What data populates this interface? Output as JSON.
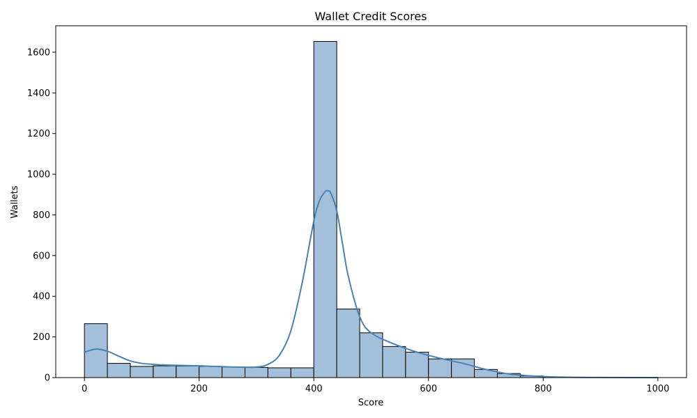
{
  "chart_data": {
    "type": "bar",
    "title": "Wallet Credit Scores",
    "xlabel": "Score",
    "ylabel": "Wallets",
    "xlim": [
      -50,
      1050
    ],
    "ylim": [
      0,
      1730
    ],
    "xticks": [
      0,
      200,
      400,
      600,
      800,
      1000
    ],
    "yticks": [
      0,
      200,
      400,
      600,
      800,
      1000,
      1200,
      1400,
      1600
    ],
    "bin_width": 40,
    "bins": [
      {
        "start": 0,
        "value": 265
      },
      {
        "start": 40,
        "value": 70
      },
      {
        "start": 80,
        "value": 55
      },
      {
        "start": 120,
        "value": 58
      },
      {
        "start": 160,
        "value": 57
      },
      {
        "start": 200,
        "value": 55
      },
      {
        "start": 240,
        "value": 52
      },
      {
        "start": 280,
        "value": 50
      },
      {
        "start": 320,
        "value": 48
      },
      {
        "start": 360,
        "value": 48
      },
      {
        "start": 400,
        "value": 1653
      },
      {
        "start": 440,
        "value": 337
      },
      {
        "start": 480,
        "value": 220
      },
      {
        "start": 520,
        "value": 153
      },
      {
        "start": 560,
        "value": 125
      },
      {
        "start": 600,
        "value": 92
      },
      {
        "start": 640,
        "value": 92
      },
      {
        "start": 680,
        "value": 40
      },
      {
        "start": 720,
        "value": 20
      },
      {
        "start": 760,
        "value": 8
      },
      {
        "start": 800,
        "value": 1
      },
      {
        "start": 960,
        "value": 1
      }
    ],
    "kde": {
      "x": [
        0,
        20,
        40,
        60,
        80,
        100,
        140,
        200,
        260,
        300,
        320,
        340,
        360,
        380,
        400,
        410,
        420,
        425,
        430,
        440,
        450,
        460,
        480,
        500,
        540,
        580,
        620,
        660,
        700,
        740,
        780,
        820,
        880,
        1000
      ],
      "y": [
        125,
        140,
        130,
        105,
        82,
        70,
        62,
        58,
        52,
        52,
        65,
        110,
        230,
        470,
        770,
        870,
        915,
        918,
        905,
        820,
        660,
        500,
        300,
        220,
        165,
        125,
        95,
        70,
        40,
        18,
        8,
        3,
        1,
        0
      ]
    },
    "bar_fill": "#a3bfd9",
    "bar_edge": "#000000",
    "kde_color": "#4682b4",
    "grid": false
  }
}
